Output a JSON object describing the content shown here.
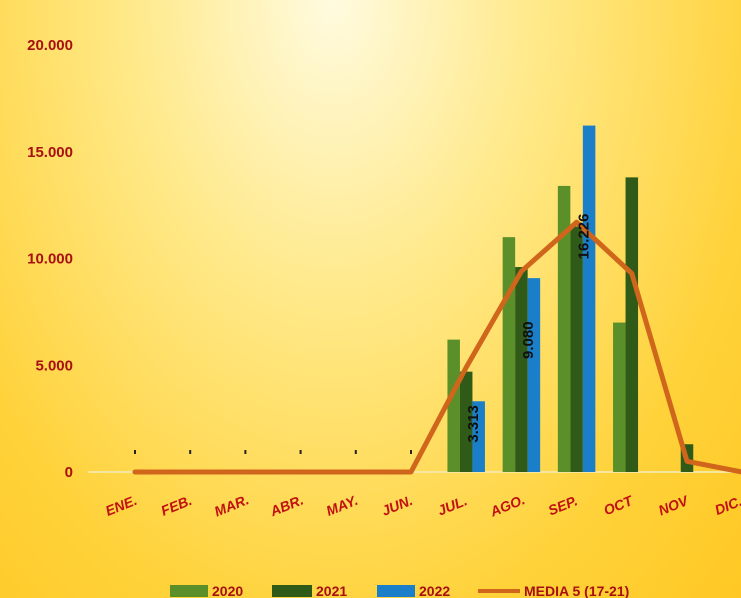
{
  "chart_data": {
    "type": "bar",
    "categories": [
      "ENE.",
      "FEB.",
      "MAR.",
      "ABR.",
      "MAY.",
      "JUN.",
      "JUL.",
      "AGO.",
      "SEP.",
      "OCT",
      "NOV",
      "DIC."
    ],
    "series": [
      {
        "name": "2020",
        "type": "bar",
        "color": "#5a8f2a",
        "values": [
          0,
          0,
          0,
          0,
          0,
          0,
          6200,
          11000,
          13400,
          7000,
          0,
          0
        ]
      },
      {
        "name": "2021",
        "type": "bar",
        "color": "#2f5a18",
        "values": [
          0,
          0,
          0,
          0,
          0,
          0,
          4700,
          9600,
          11500,
          13800,
          1300,
          0
        ]
      },
      {
        "name": "2022",
        "type": "bar",
        "color": "#1a7fc8",
        "values": [
          0,
          0,
          0,
          0,
          0,
          0,
          3313,
          9080,
          16226,
          0,
          0,
          0
        ]
      },
      {
        "name": "MEDIA 5 (17-21)",
        "type": "line",
        "color": "#d0651c",
        "values": [
          0,
          0,
          0,
          0,
          0,
          0,
          4900,
          9400,
          11700,
          9300,
          500,
          0
        ]
      }
    ],
    "data_labels": [
      {
        "series": "2022",
        "category": "JUL.",
        "text": "3.313"
      },
      {
        "series": "2022",
        "category": "AGO.",
        "text": "9.080"
      },
      {
        "series": "2022",
        "category": "SEP.",
        "text": "16.226"
      }
    ],
    "y_ticks": [
      {
        "value": 0,
        "label": "0"
      },
      {
        "value": 5000,
        "label": "5.000"
      },
      {
        "value": 10000,
        "label": "10.000"
      },
      {
        "value": 15000,
        "label": "15.000"
      },
      {
        "value": 20000,
        "label": "20.000"
      }
    ],
    "ylim": [
      0,
      20000
    ],
    "title": "",
    "xlabel": "",
    "ylabel": "",
    "grid": false,
    "legend_position": "bottom",
    "colors": {
      "tick_label": "#a81010",
      "axis_line": "#f5e6a0"
    }
  }
}
